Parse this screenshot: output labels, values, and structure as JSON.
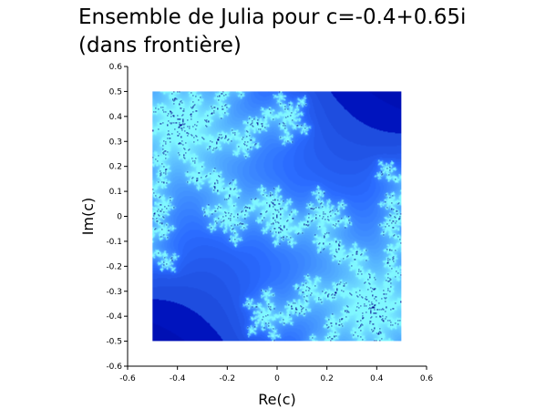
{
  "chart_data": {
    "type": "heatmap",
    "title": "Ensemble de Julia pour c=-0.4+0.65i\n(dans frontière)",
    "xlabel": "Re(c)",
    "ylabel": "Im(c)",
    "xlim": [
      -0.6,
      0.6
    ],
    "ylim": [
      -0.6,
      0.6
    ],
    "x_ticks": [
      -0.6,
      -0.4,
      -0.2,
      0,
      0.2,
      0.4,
      0.6
    ],
    "x_tick_labels": [
      "-0.6",
      "-0.4",
      "-0.2",
      "0",
      "0.2",
      "0.4",
      "0.6"
    ],
    "y_ticks": [
      0.6,
      0.5,
      0.4,
      0.3,
      0.2,
      0.1,
      0,
      -0.1,
      -0.2,
      -0.3,
      -0.4,
      -0.5,
      -0.6
    ],
    "y_tick_labels": [
      "0.6",
      "0.5",
      "0.4",
      "0.3",
      "0.2",
      "0.1",
      "0",
      "-0.1",
      "-0.2",
      "-0.3",
      "-0.4",
      "-0.5",
      "-0.6"
    ],
    "image_extent": {
      "x": [
        -0.5,
        0.5
      ],
      "y": [
        -0.5,
        0.5
      ]
    },
    "julia_c": {
      "re": -0.4,
      "im": 0.65
    },
    "grid": false,
    "legend": "none",
    "colors": {
      "background": "#00008c",
      "boundary_mid": "#2a6bff",
      "boundary_high": "#7ff7ff"
    }
  }
}
